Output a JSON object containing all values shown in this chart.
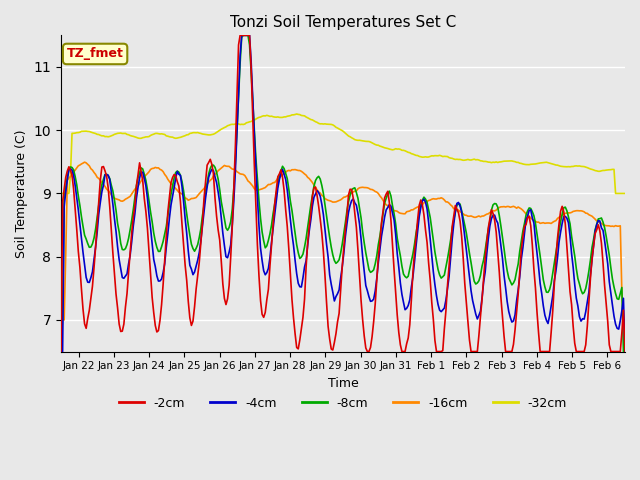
{
  "title": "Tonzi Soil Temperatures Set C",
  "xlabel": "Time",
  "ylabel": "Soil Temperature (C)",
  "ylim": [
    6.5,
    11.5
  ],
  "annotation": "TZ_fmet",
  "series_labels": [
    "-2cm",
    "-4cm",
    "-8cm",
    "-16cm",
    "-32cm"
  ],
  "series_colors": [
    "#dd0000",
    "#0000cc",
    "#00aa00",
    "#ff8800",
    "#dddd00"
  ],
  "background_color": "#e8e8e8",
  "plot_bg_color": "#e8e8e8",
  "grid_color": "#ffffff",
  "tick_label_dates": [
    "Jan 22",
    "Jan 23",
    "Jan 24",
    "Jan 25",
    "Jan 26",
    "Jan 27",
    "Jan 28",
    "Jan 29",
    "Jan 30",
    "Jan 31",
    "Feb 1",
    "Feb 2",
    "Feb 3",
    "Feb 4",
    "Feb 5",
    "Feb 6"
  ],
  "n_points": 360
}
